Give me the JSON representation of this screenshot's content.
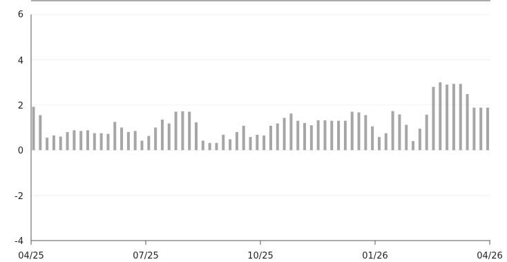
{
  "chart_data": {
    "type": "bar",
    "title": "",
    "xlabel": "",
    "ylabel": "",
    "ylim": [
      -4,
      6
    ],
    "y_ticks": [
      "6",
      "4",
      "2",
      "0",
      "-2",
      "-4"
    ],
    "x_ticks": [
      "04/25",
      "07/25",
      "10/25",
      "01/26",
      "04/26"
    ],
    "grid": true,
    "legend": "none",
    "colors": {
      "bar": "#a6a6a6",
      "axis": "#555555",
      "grid": "#f0f0f0"
    },
    "series": [
      {
        "values": [
          1.92,
          1.55,
          0.55,
          0.65,
          0.6,
          0.8,
          0.88,
          0.85,
          0.88,
          0.75,
          0.75,
          0.72,
          1.25,
          1.0,
          0.8,
          0.85,
          0.42,
          0.63,
          1.0,
          1.35,
          1.18,
          1.7,
          1.72,
          1.7,
          1.23,
          0.42,
          0.32,
          0.32,
          0.68,
          0.48,
          0.8,
          1.08,
          0.58,
          0.68,
          0.65,
          1.08,
          1.18,
          1.43,
          1.62,
          1.3,
          1.2,
          1.1,
          1.32,
          1.32,
          1.3,
          1.3,
          1.3,
          1.7,
          1.67,
          1.55,
          1.05,
          0.58,
          0.75,
          1.73,
          1.58,
          1.12,
          0.4,
          0.95,
          1.57,
          2.8,
          3.0,
          2.9,
          2.93,
          2.93,
          2.48,
          1.88,
          1.88,
          1.88
        ]
      }
    ]
  }
}
